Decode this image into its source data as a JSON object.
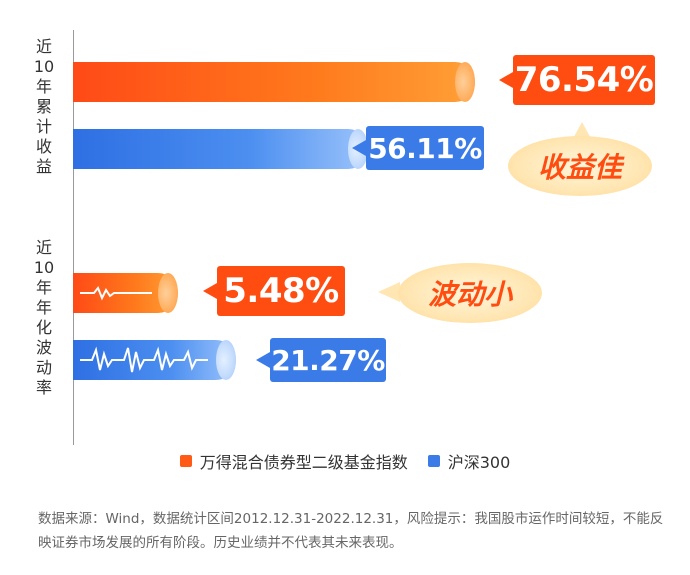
{
  "chart_data": {
    "type": "bar",
    "orientation": "horizontal",
    "groups": [
      {
        "label": "近\n10\n年\n累\n计\n收\n益",
        "values": [
          {
            "series": "万得混合债券型二级基金指数",
            "value": 76.54,
            "display": "76.54%"
          },
          {
            "series": "沪深300",
            "value": 56.11,
            "display": "56.11%"
          }
        ],
        "badge": "收益佳"
      },
      {
        "label": "近\n10\n年\n年\n化\n波\n动\n率",
        "values": [
          {
            "series": "万得混合债券型二级基金指数",
            "value": 5.48,
            "display": "5.48%"
          },
          {
            "series": "沪深300",
            "value": 21.27,
            "display": "21.27%"
          }
        ],
        "badge": "波动小"
      }
    ],
    "legend": [
      {
        "name": "万得混合债券型二级基金指数",
        "color": "#ff5a16"
      },
      {
        "name": "沪深300",
        "color": "#3b7be8"
      }
    ],
    "legend_position": "bottom"
  },
  "colors": {
    "orange": "#ff4d12",
    "blue": "#3b7be8"
  },
  "footnote": "数据来源：Wind，数据统计区间2012.12.31-2022.12.31，风险提示：我国股市运作时间较短，不能反映证券市场发展的所有阶段。历史业绩并不代表其未来表现。"
}
